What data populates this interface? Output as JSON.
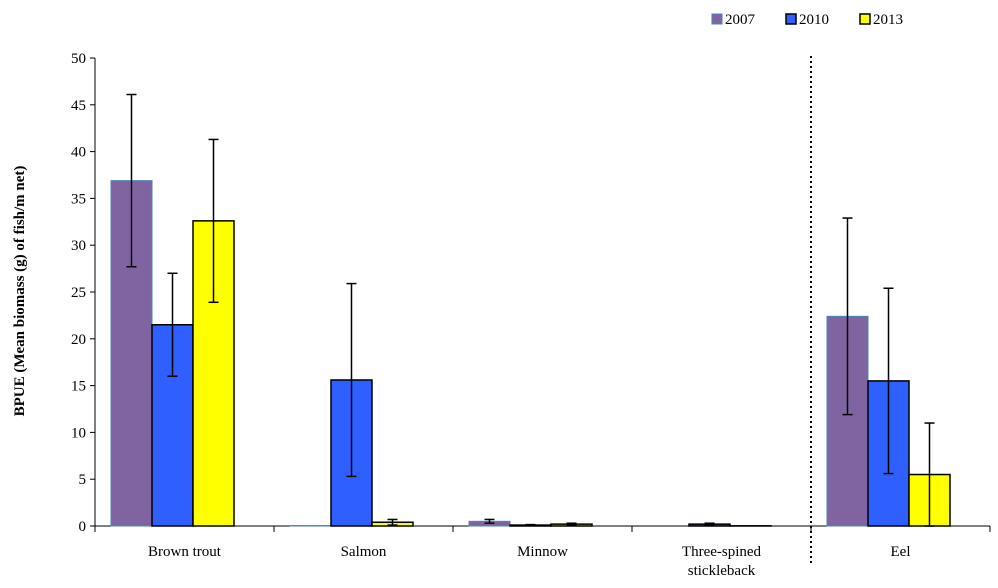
{
  "chart_data": {
    "type": "bar",
    "ylabel": "BPUE (Mean biomass (g) of  fish/m net)",
    "ylim": [
      0,
      50
    ],
    "yticks": [
      0,
      5,
      10,
      15,
      20,
      25,
      30,
      35,
      40,
      45,
      50
    ],
    "grid": false,
    "legend_position": "top-right",
    "categories": [
      {
        "label": "Brown trout",
        "lines": [
          "Brown trout"
        ]
      },
      {
        "label": "Salmon",
        "lines": [
          "Salmon"
        ]
      },
      {
        "label": "Minnow",
        "lines": [
          "Minnow"
        ]
      },
      {
        "label": "Three-spined stickleback",
        "lines": [
          "Three-spined",
          "stickleback"
        ]
      },
      {
        "label": "Eel",
        "lines": [
          "Eel"
        ]
      }
    ],
    "separator_after_category_index": 3,
    "series": [
      {
        "name": "2007",
        "color": "#8064a2",
        "stroke": "#4f81bd",
        "values": [
          36.9,
          0.05,
          0.5,
          0.0,
          22.4
        ],
        "errors": [
          9.2,
          0.0,
          0.2,
          0.0,
          10.5
        ]
      },
      {
        "name": "2010",
        "color": "#2f5fff",
        "stroke": "#000000",
        "values": [
          21.5,
          15.6,
          0.1,
          0.2,
          15.5
        ],
        "errors": [
          5.5,
          10.3,
          0.05,
          0.1,
          9.9
        ]
      },
      {
        "name": "2013",
        "color": "#ffff00",
        "stroke": "#000000",
        "values": [
          32.6,
          0.4,
          0.2,
          0.02,
          5.5
        ],
        "errors": [
          8.7,
          0.3,
          0.1,
          0.0,
          5.5
        ]
      }
    ]
  }
}
